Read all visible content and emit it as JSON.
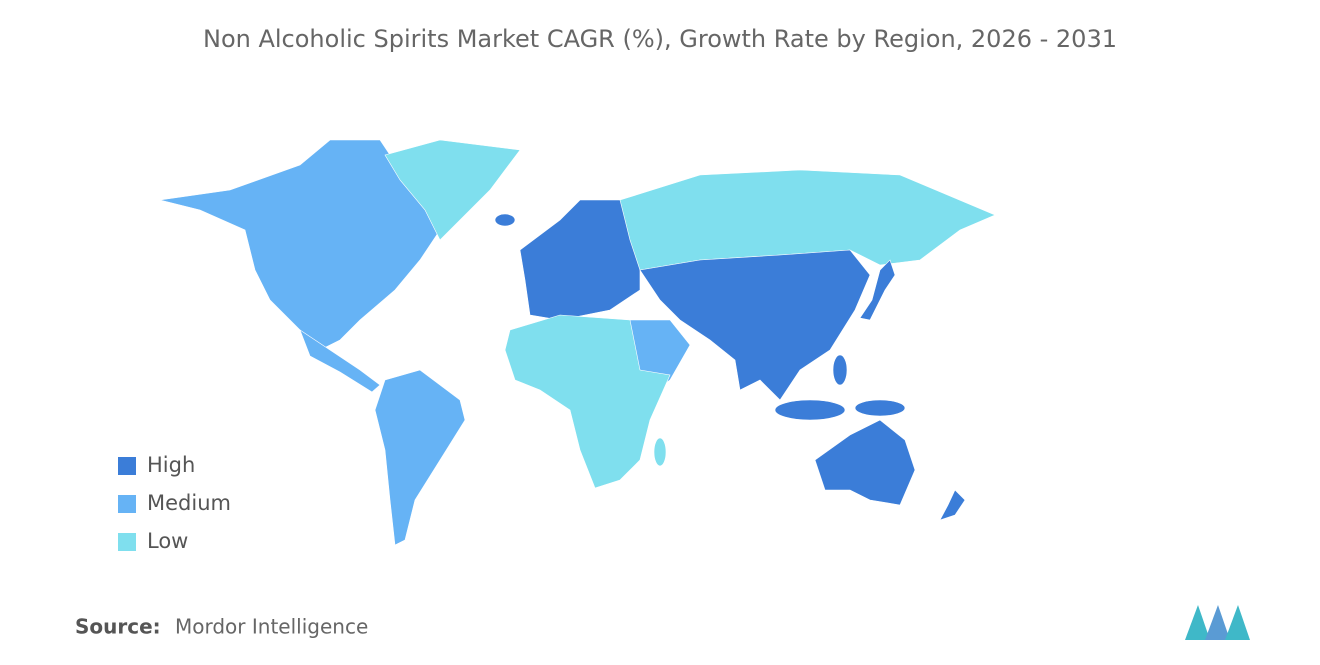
{
  "title": "Non Alcoholic Spirits Market CAGR (%), Growth Rate by Region, 2026 - 2031",
  "legend": [
    {
      "label": "High",
      "color": "#3b7dd8"
    },
    {
      "label": "Medium",
      "color": "#66b3f5"
    },
    {
      "label": "Low",
      "color": "#7fdfee"
    }
  ],
  "source": {
    "label": "Source:",
    "text": "Mordor Intelligence"
  }
}
